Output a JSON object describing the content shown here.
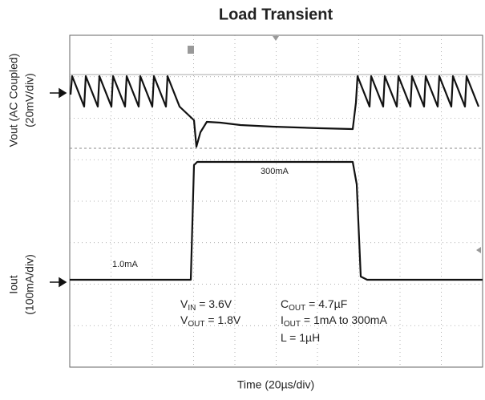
{
  "chart_data": {
    "type": "scope",
    "title": "Load Transient",
    "x_label": "Time (20µs/div)",
    "y_labels": [
      [
        "Vout (AC Coupled)",
        "(20mV/div)"
      ],
      [
        "Iout",
        "(100mA/div)"
      ]
    ],
    "trace_labels": [
      "300mA",
      "1.0mA"
    ],
    "conditions": [
      {
        "base": "V",
        "sub": "IN",
        "rest": " = 3.6V"
      },
      {
        "base": "V",
        "sub": "OUT",
        "rest": " = 1.8V"
      },
      {
        "base": "C",
        "sub": "OUT",
        "rest": " = 4.7µF"
      },
      {
        "base": "I",
        "sub": "OUT",
        "rest": " = 1mA to 300mA"
      },
      {
        "base": "L",
        "sub": "",
        "rest": " = 1µH"
      }
    ]
  }
}
